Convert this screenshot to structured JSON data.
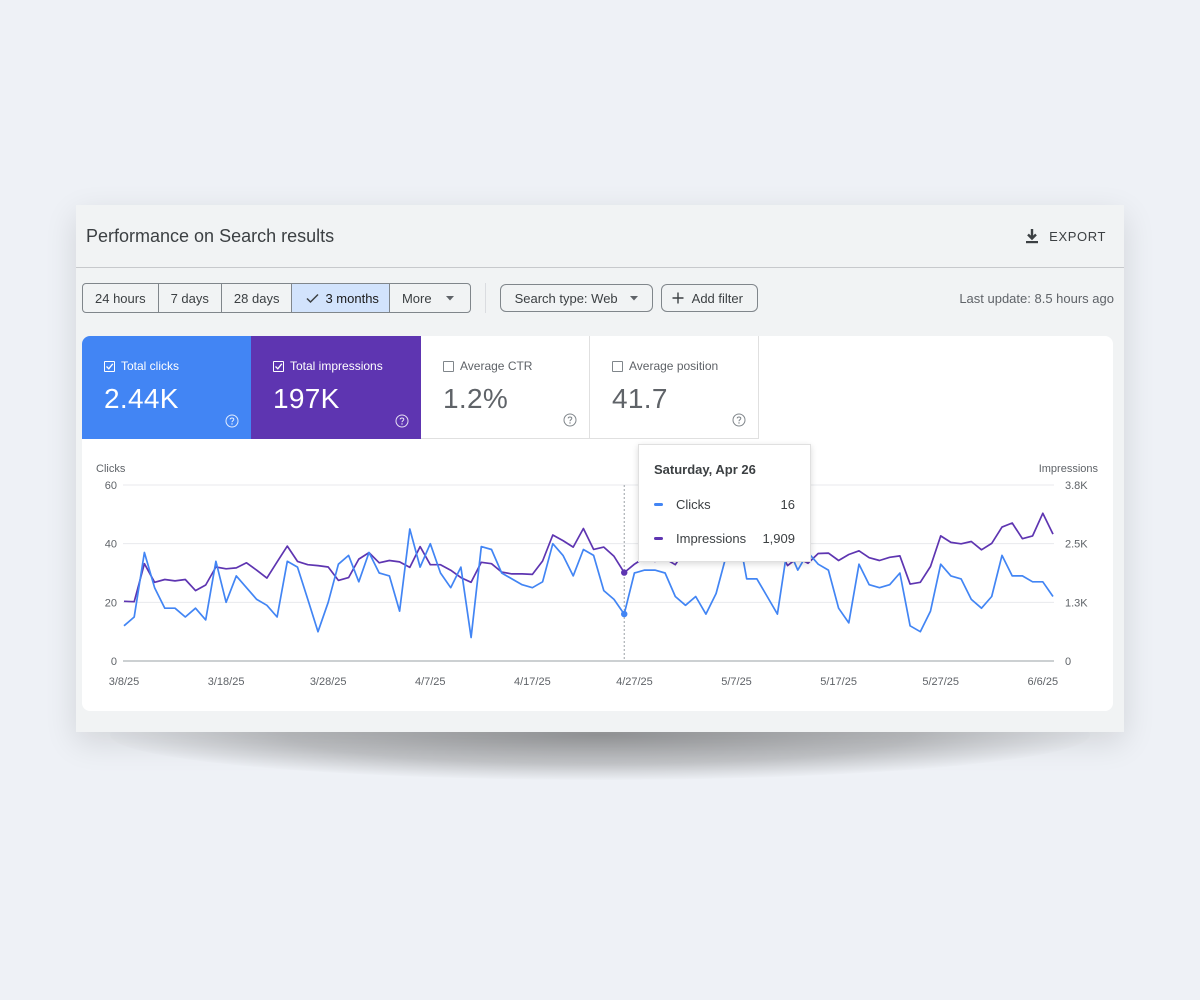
{
  "header": {
    "title": "Performance on Search results",
    "export_label": "EXPORT"
  },
  "filters": {
    "ranges": [
      "24 hours",
      "7 days",
      "28 days",
      "3 months"
    ],
    "active_range": "3 months",
    "more_label": "More",
    "search_type_label": "Search type: Web",
    "add_filter_label": "Add filter",
    "last_update": "Last update: 8.5 hours ago"
  },
  "metrics": {
    "clicks": {
      "label": "Total clicks",
      "value": "2.44K",
      "checked": true
    },
    "impressions": {
      "label": "Total impressions",
      "value": "197K",
      "checked": true
    },
    "ctr": {
      "label": "Average CTR",
      "value": "1.2%",
      "checked": false
    },
    "position": {
      "label": "Average position",
      "value": "41.7",
      "checked": false
    }
  },
  "colors": {
    "clicks": "#4285f4",
    "impressions": "#5e35b1"
  },
  "tooltip": {
    "date": "Saturday, Apr 26",
    "clicks_label": "Clicks",
    "clicks_value": "16",
    "impressions_label": "Impressions",
    "impressions_value": "1,909"
  },
  "chart_data": {
    "type": "line",
    "left_axis_title": "Clicks",
    "right_axis_title": "Impressions",
    "left_ticks": [
      "60",
      "40",
      "20",
      "0"
    ],
    "right_ticks": [
      "3.8K",
      "2.5K",
      "1.3K",
      "0"
    ],
    "x_ticks": [
      "3/8/25",
      "3/18/25",
      "3/28/25",
      "4/7/25",
      "4/17/25",
      "4/27/25",
      "5/7/25",
      "5/17/25",
      "5/27/25",
      "6/6/25"
    ],
    "ylim_left": [
      0,
      60
    ],
    "ylim_right": [
      0,
      3800
    ],
    "highlight_index": 49,
    "series": [
      {
        "name": "Clicks",
        "axis": "left",
        "values": [
          12,
          15,
          37,
          25,
          18,
          18,
          15,
          18,
          14,
          34,
          20,
          29,
          25,
          21,
          19,
          15,
          34,
          32,
          21,
          10,
          20,
          33,
          36,
          27,
          37,
          30,
          29,
          17,
          45,
          32,
          40,
          30,
          25,
          32,
          8,
          39,
          38,
          30,
          28,
          26,
          25,
          27,
          40,
          36,
          29,
          38,
          36,
          24,
          21,
          16,
          30,
          31,
          31,
          30,
          22,
          19,
          22,
          16,
          23,
          36,
          47,
          28,
          28,
          22,
          16,
          39,
          31,
          37,
          33,
          31,
          18,
          13,
          33,
          26,
          25,
          26,
          30,
          12,
          10,
          17,
          33,
          29,
          28,
          21,
          18,
          22,
          36,
          29,
          29,
          27,
          27,
          22
        ]
      },
      {
        "name": "Impressions",
        "axis": "right",
        "values": [
          1290,
          1280,
          2100,
          1700,
          1760,
          1730,
          1760,
          1520,
          1640,
          2030,
          1990,
          2010,
          2120,
          1960,
          1790,
          2140,
          2480,
          2150,
          2080,
          2060,
          2030,
          1740,
          1800,
          2200,
          2340,
          2120,
          2170,
          2140,
          2020,
          2470,
          2080,
          2080,
          1960,
          1800,
          1700,
          2130,
          2100,
          1920,
          1880,
          1880,
          1870,
          2160,
          2720,
          2600,
          2460,
          2860,
          2410,
          2460,
          2260,
          1909,
          2090,
          2230,
          2150,
          2210,
          2080,
          2410,
          2260,
          2170,
          2190,
          2330,
          2420,
          2520,
          2200,
          2240,
          2480,
          2060,
          2230,
          2110,
          2320,
          2330,
          2170,
          2300,
          2380,
          2230,
          2170,
          2240,
          2270,
          1660,
          1700,
          2040,
          2700,
          2560,
          2530,
          2580,
          2400,
          2540,
          2890,
          2980,
          2640,
          2700,
          3190,
          2740
        ]
      }
    ]
  }
}
